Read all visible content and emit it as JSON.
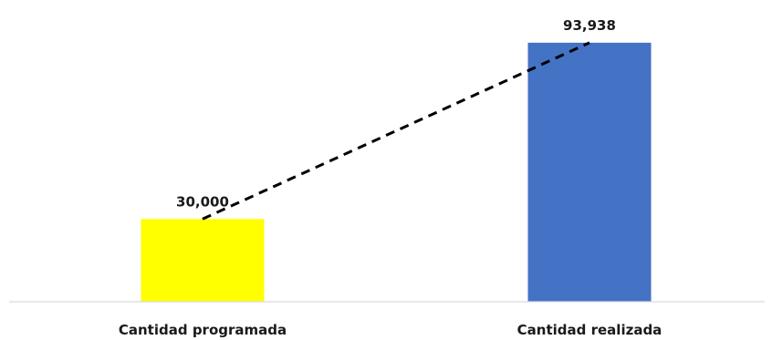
{
  "chart_data": {
    "type": "bar",
    "categories": [
      "Cantidad programada",
      "Cantidad realizada"
    ],
    "values": [
      30000,
      93938
    ],
    "data_labels": [
      "30,000",
      "93,938"
    ],
    "colors": [
      "#FFFF00",
      "#4472C4"
    ],
    "trendline": {
      "style": "dashed",
      "color": "#000000"
    },
    "title": "",
    "xlabel": "",
    "ylabel": "",
    "ylim": [
      0,
      100000
    ],
    "grid": false,
    "legend": "none"
  }
}
